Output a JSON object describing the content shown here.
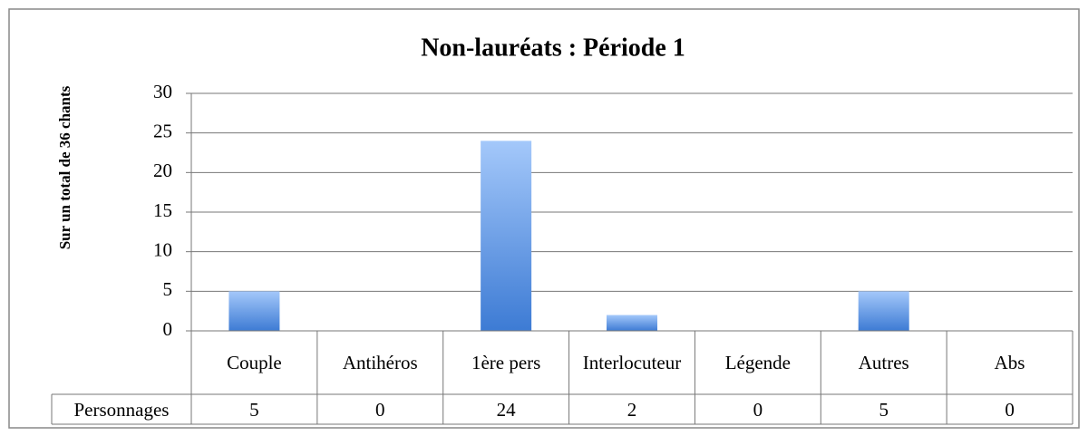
{
  "chart_data": {
    "type": "bar",
    "title": "Non-lauréats : Période 1",
    "y_label": "Sur un total de 36 chants",
    "categories": [
      "Couple",
      "Antihéros",
      "1ère pers",
      "Interlocuteur",
      "Légende",
      "Autres",
      "Abs"
    ],
    "series": [
      {
        "name": "Personnages",
        "color": "#4a86d8",
        "values": [
          5,
          0,
          24,
          2,
          0,
          5,
          0
        ]
      }
    ],
    "ylim": [
      0,
      30
    ],
    "yticks": [
      0,
      5,
      10,
      15,
      20,
      25,
      30
    ],
    "grid": true,
    "data_table": true
  }
}
